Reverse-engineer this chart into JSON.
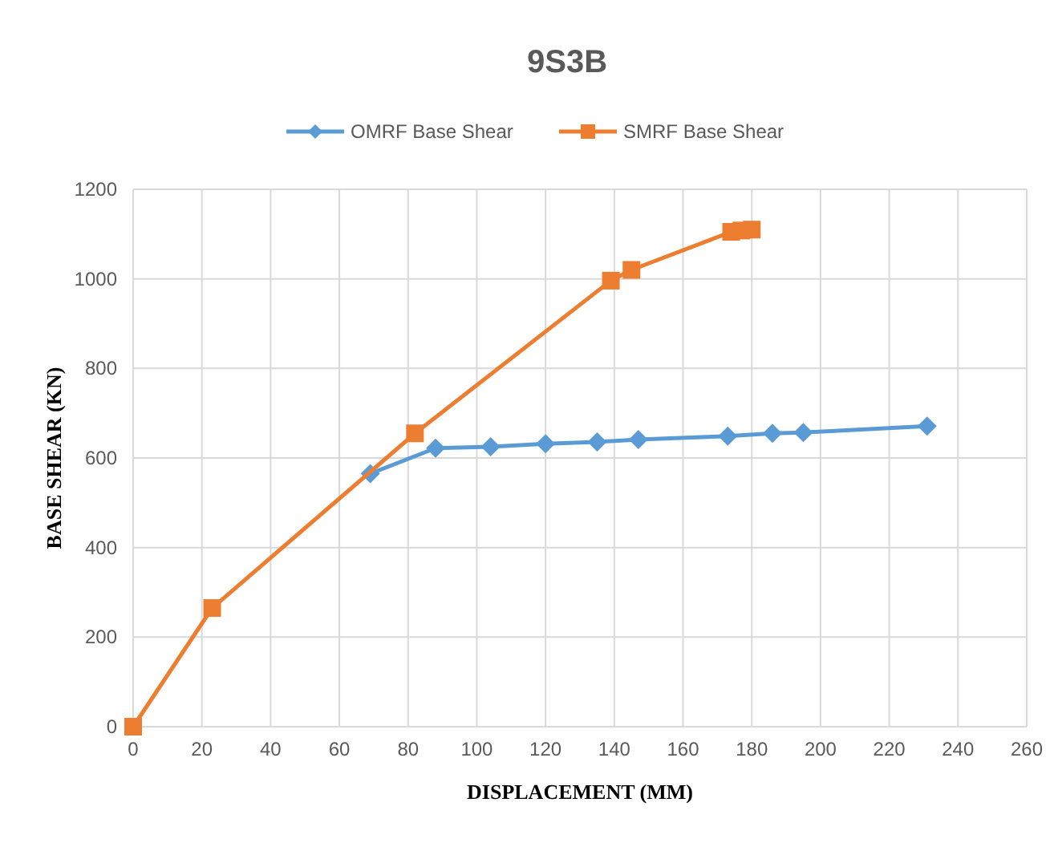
{
  "chart_data": {
    "type": "line",
    "title": "9S3B",
    "xlabel": "DISPLACEMENT (MM)",
    "ylabel": "BASE SHEAR  (KN)",
    "xlim": [
      0,
      260
    ],
    "xticks": [
      0,
      20,
      40,
      60,
      80,
      100,
      120,
      140,
      160,
      180,
      200,
      220,
      240,
      260
    ],
    "ylim": [
      0,
      1200
    ],
    "yticks": [
      0,
      200,
      400,
      600,
      800,
      1000,
      1200
    ],
    "grid": true,
    "legend": "top",
    "series": [
      {
        "name": "OMRF Base Shear",
        "color": "#5b9bd5",
        "marker": "diamond",
        "x": [
          69,
          87,
          88,
          104,
          120,
          135,
          147,
          173,
          186,
          195,
          231
        ],
        "values": [
          565,
          null,
          622,
          625,
          632,
          636,
          641,
          649,
          655,
          657,
          671
        ]
      },
      {
        "name": "SMRF Base Shear",
        "color": "#ed7d31",
        "marker": "square",
        "x": [
          0,
          23,
          82,
          139,
          145,
          172,
          174,
          177,
          180
        ],
        "values": [
          0,
          265,
          655,
          996,
          1020,
          null,
          1105,
          1108,
          1110
        ]
      }
    ]
  }
}
